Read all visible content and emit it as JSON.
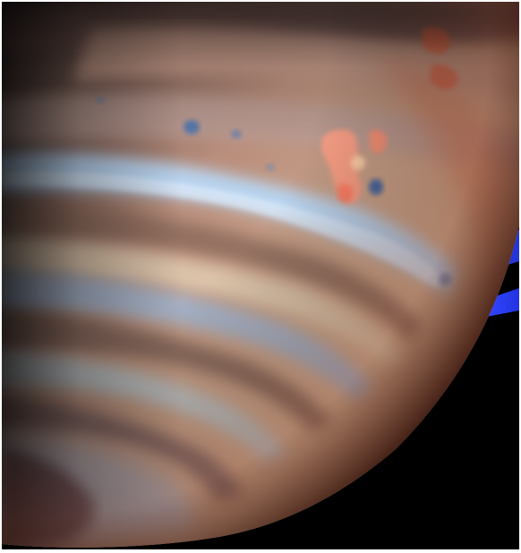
{
  "image": {
    "subject": "planet-surface-infrared-photo",
    "colors": {
      "space": "#000000",
      "ring_blue": "#2b3cff",
      "band_orange": "#c98a6a",
      "band_cream": "#e8c9a8",
      "band_blue": "#a9c8ee",
      "band_brown": "#8a6553",
      "storm_pink": "#ff9c7a",
      "spot_blue": "#3a6fb3"
    }
  }
}
